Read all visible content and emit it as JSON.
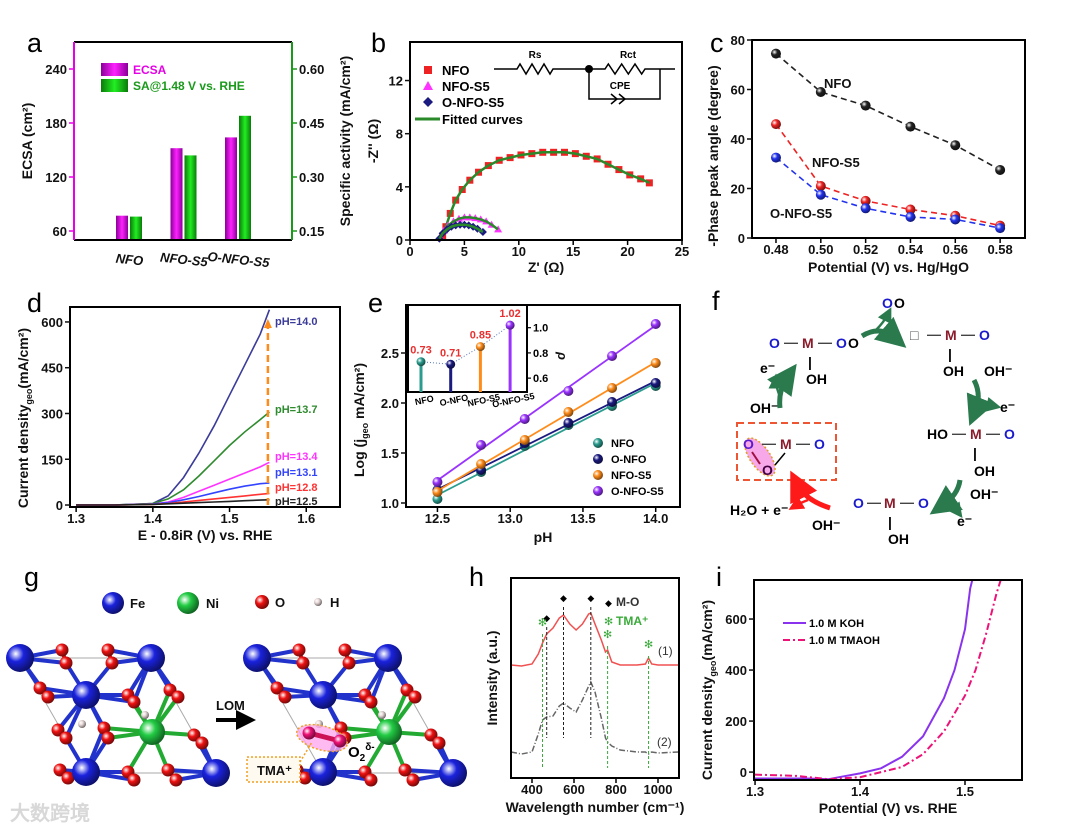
{
  "panels": {
    "a": "a",
    "b": "b",
    "c": "c",
    "d": "d",
    "e": "e",
    "f": "f",
    "g": "g",
    "h": "h",
    "i": "i"
  },
  "colors": {
    "magenta": "#e600e6",
    "green": "#1a9a1a",
    "red": "#ee2222",
    "navy": "#1a1a80",
    "blue": "#2233ee",
    "orange": "#ff8c1a",
    "purple": "#9933ff",
    "teal": "#2a9d8f",
    "pink": "#ee1177"
  },
  "chart_data": [
    {
      "panel": "a",
      "type": "bar",
      "categories": [
        "NFO",
        "NFO-S5",
        "O-NFO-S5"
      ],
      "series": [
        {
          "name": "ECSA",
          "axis": "left",
          "values": [
            77,
            152,
            164
          ]
        },
        {
          "name": "SA@1.48 V vs. RHE",
          "axis": "right",
          "values": [
            0.19,
            0.36,
            0.47
          ]
        }
      ],
      "ylabel": "ECSA (cm²)",
      "y2label": "Specific activity (mA/cm²)",
      "ylim": [
        50,
        270
      ],
      "y2lim": [
        0.125,
        0.675
      ],
      "yticks": [
        "60",
        "120",
        "180",
        "240"
      ],
      "y2ticks": [
        "0.15",
        "0.30",
        "0.45",
        "0.60"
      ]
    },
    {
      "panel": "b",
      "type": "scatter",
      "xlabel": "Z' (Ω)",
      "ylabel": "-Z'' (Ω)",
      "xlim": [
        0,
        25
      ],
      "ylim": [
        0,
        14.9
      ],
      "xticks": [
        "0",
        "5",
        "10",
        "15",
        "20",
        "25"
      ],
      "yticks": [
        "0",
        "4",
        "8",
        "12"
      ],
      "series": [
        {
          "name": "NFO",
          "x": [
            3.0,
            3.3,
            3.7,
            4.2,
            4.8,
            5.5,
            6.3,
            7.2,
            8.2,
            9.2,
            10.2,
            11.2,
            12.2,
            13.2,
            14.2,
            15.2,
            16.2,
            17.2,
            18.2,
            19.2,
            20.2,
            21.2,
            22.0
          ],
          "y": [
            0.3,
            1.0,
            2.0,
            3.0,
            3.8,
            4.5,
            5.1,
            5.6,
            6.0,
            6.2,
            6.4,
            6.5,
            6.6,
            6.6,
            6.6,
            6.5,
            6.3,
            6.1,
            5.7,
            5.3,
            4.9,
            4.6,
            4.3
          ]
        },
        {
          "name": "NFO-S5",
          "x": [
            2.8,
            3.1,
            3.5,
            4.0,
            4.5,
            5.0,
            5.5,
            6.0,
            6.5,
            7.0,
            7.5,
            8.1
          ],
          "y": [
            0.2,
            0.7,
            1.1,
            1.4,
            1.6,
            1.7,
            1.7,
            1.65,
            1.55,
            1.4,
            1.15,
            0.8
          ]
        },
        {
          "name": "O-NFO-S5",
          "x": [
            2.7,
            3.0,
            3.4,
            3.8,
            4.2,
            4.6,
            5.0,
            5.4,
            5.8,
            6.2,
            6.7
          ],
          "y": [
            0.1,
            0.5,
            0.8,
            1.0,
            1.1,
            1.15,
            1.15,
            1.1,
            1.0,
            0.85,
            0.6
          ]
        }
      ],
      "fit_label": "Fitted curves",
      "circuit": {
        "rs": "Rs",
        "rct": "Rct",
        "cpe": "CPE"
      }
    },
    {
      "panel": "c",
      "type": "line",
      "xlabel": "Potential (V) vs. Hg/HgO",
      "ylabel": "-Phase peak angle (degree)",
      "xlim": [
        0.4693,
        0.5911
      ],
      "ylim": [
        0,
        80
      ],
      "xticks": [
        "0.48",
        "0.50",
        "0.52",
        "0.54",
        "0.56",
        "0.58"
      ],
      "yticks": [
        "0",
        "20",
        "40",
        "60",
        "80"
      ],
      "x": [
        0.48,
        0.5,
        0.52,
        0.54,
        0.56,
        0.58
      ],
      "series": [
        {
          "name": "NFO",
          "values": [
            74.5,
            59,
            53.5,
            45,
            37.5,
            27.5
          ]
        },
        {
          "name": "NFO-S5",
          "values": [
            46,
            21,
            15,
            11.5,
            9,
            5
          ]
        },
        {
          "name": "O-NFO-S5",
          "values": [
            32.5,
            17.5,
            12,
            8.5,
            7.5,
            4
          ]
        }
      ]
    },
    {
      "panel": "d",
      "type": "line",
      "xlabel": "E - 0.8iR (V) vs. RHE",
      "ylabel": "Current density",
      "ylabel_sub": "geo",
      "ylabel_unit": "(mA/cm²)",
      "xlim": [
        1.292,
        1.644
      ],
      "ylim": [
        -6.5,
        649
      ],
      "xticks": [
        "1.3",
        "1.4",
        "1.5",
        "1.6"
      ],
      "yticks": [
        "0",
        "150",
        "300",
        "450",
        "600"
      ],
      "x": [
        1.3,
        1.35,
        1.4,
        1.42,
        1.44,
        1.46,
        1.48,
        1.5,
        1.52,
        1.54,
        1.552
      ],
      "series": [
        {
          "name": "pH=14.0",
          "values": [
            0,
            0,
            5,
            30,
            90,
            170,
            260,
            360,
            460,
            560,
            640
          ]
        },
        {
          "name": "pH=13.7",
          "values": [
            0,
            0,
            5,
            20,
            50,
            95,
            145,
            195,
            240,
            280,
            305
          ]
        },
        {
          "name": "pH=13.4",
          "values": [
            0,
            0,
            3,
            10,
            25,
            45,
            65,
            85,
            105,
            125,
            140
          ]
        },
        {
          "name": "pH=13.1",
          "values": [
            0,
            0,
            3,
            8,
            17,
            28,
            40,
            52,
            62,
            70,
            72
          ]
        },
        {
          "name": "pH=12.8",
          "values": [
            0,
            0,
            2,
            5,
            10,
            15,
            20,
            25,
            30,
            35,
            38
          ]
        },
        {
          "name": "pH=12.5",
          "values": [
            0,
            0,
            2,
            4,
            6,
            8,
            10,
            12,
            14,
            16,
            17
          ]
        }
      ],
      "marker_potential": 1.55
    },
    {
      "panel": "e",
      "type": "scatter",
      "xlabel": "pH",
      "ylabel": "Log (j",
      "ylabel_sub": "geo",
      "ylabel_unit": " mA/cm²)",
      "xlim": [
        12.284,
        14.167
      ],
      "ylim": [
        0.96,
        2.98
      ],
      "xticks": [
        "12.5",
        "13.0",
        "13.5",
        "14.0"
      ],
      "yticks": [
        "1.0",
        "1.5",
        "2.0",
        "2.5"
      ],
      "x": [
        12.5,
        12.8,
        13.1,
        13.4,
        13.7,
        14.0
      ],
      "series": [
        {
          "name": "NFO",
          "values": [
            1.04,
            1.31,
            1.57,
            1.78,
            1.97,
            2.17
          ]
        },
        {
          "name": "O-NFO",
          "values": [
            1.13,
            1.33,
            1.6,
            1.8,
            2.01,
            2.2
          ]
        },
        {
          "name": "NFO-S5",
          "values": [
            1.11,
            1.39,
            1.63,
            1.91,
            2.15,
            2.4
          ]
        },
        {
          "name": "O-NFO-S5",
          "values": [
            1.21,
            1.58,
            1.84,
            2.12,
            2.47,
            2.79
          ]
        }
      ]
    },
    {
      "panel": "e-inset",
      "type": "bar",
      "categories": [
        "NFO",
        "O-NFO",
        "NFO-S5",
        "O-NFO-S5"
      ],
      "values": [
        0.73,
        0.71,
        0.85,
        1.02
      ],
      "value_labels": [
        "0.73",
        "0.71",
        "0.85",
        "1.02"
      ],
      "ylabel": "ρ",
      "ylim": [
        0.49,
        1.18
      ],
      "yticks": [
        "0.6",
        "0.8",
        "1.0"
      ]
    },
    {
      "panel": "h",
      "type": "line",
      "xlabel": "Wavelength number (cm⁻¹)",
      "ylabel": "Intensity (a.u.)",
      "xlim": [
        300,
        1100
      ],
      "ylim": [
        0,
        1
      ],
      "xticks": [
        "400",
        "600",
        "800",
        "1000"
      ],
      "x": [
        300,
        350,
        400,
        430,
        450,
        470,
        500,
        530,
        550,
        580,
        610,
        640,
        670,
        680,
        700,
        730,
        750,
        760,
        780,
        820,
        900,
        940,
        955,
        970,
        1000,
        1100
      ],
      "series": [
        {
          "name": "(1)",
          "values": [
            0.565,
            0.56,
            0.57,
            0.62,
            0.675,
            0.72,
            0.75,
            0.8,
            0.815,
            0.77,
            0.74,
            0.77,
            0.82,
            0.825,
            0.77,
            0.69,
            0.63,
            0.64,
            0.58,
            0.565,
            0.565,
            0.57,
            0.6,
            0.57,
            0.565,
            0.565
          ]
        },
        {
          "name": "(2)",
          "values": [
            0.13,
            0.12,
            0.13,
            0.22,
            0.29,
            0.305,
            0.31,
            0.36,
            0.375,
            0.35,
            0.33,
            0.39,
            0.46,
            0.48,
            0.43,
            0.3,
            0.2,
            0.18,
            0.16,
            0.14,
            0.13,
            0.13,
            0.12,
            0.13,
            0.125,
            0.13
          ]
        }
      ],
      "mo_peaks": [
        470,
        550,
        680
      ],
      "tma_peaks": [
        450,
        760,
        955
      ],
      "legend": {
        "mo_symbol": "◆",
        "mo": "M-O",
        "tma_symbol": "✻",
        "tma": "TMA⁺"
      }
    },
    {
      "panel": "i",
      "type": "line",
      "xlabel": "Potential (V) vs. RHE",
      "ylabel": "Current density",
      "ylabel_sub": "geo",
      "ylabel_unit": "(mA/cm²)",
      "xlim": [
        1.299,
        1.5543
      ],
      "ylim": [
        -31,
        753
      ],
      "xticks": [
        "1.3",
        "1.4",
        "1.5"
      ],
      "yticks": [
        "0",
        "200",
        "400",
        "600"
      ],
      "series": [
        {
          "name": "1.0 M KOH",
          "x": [
            1.3,
            1.35,
            1.37,
            1.38,
            1.4,
            1.42,
            1.44,
            1.46,
            1.48,
            1.49,
            1.5,
            1.505,
            1.507
          ],
          "y": [
            -25,
            -25,
            -28,
            -20,
            -5,
            15,
            60,
            140,
            290,
            400,
            560,
            720,
            753
          ]
        },
        {
          "name": "1.0 M TMAOH",
          "x": [
            1.3,
            1.34,
            1.37,
            1.4,
            1.42,
            1.44,
            1.46,
            1.48,
            1.5,
            1.51,
            1.52,
            1.53,
            1.534
          ],
          "y": [
            -10,
            -15,
            -28,
            -20,
            0,
            20,
            70,
            160,
            300,
            400,
            540,
            700,
            753
          ]
        }
      ]
    }
  ],
  "diagram_f": {
    "O": "O",
    "M": "M",
    "OH": "OH",
    "HO": "HO",
    "OH_minus": "OH⁻",
    "e_minus": "e⁻",
    "vacancy": "□",
    "H2O_e": "H₂O + e⁻",
    "bond": "—",
    "vbond": "|"
  },
  "structure_g": {
    "legend": [
      "Fe",
      "Ni",
      "O",
      "H"
    ],
    "arrow_label": "LOM",
    "tma": "TMA⁺",
    "o2": "O",
    "o2_sub": "2",
    "o2_sup": "δ-"
  },
  "watermark": "大数跨境"
}
